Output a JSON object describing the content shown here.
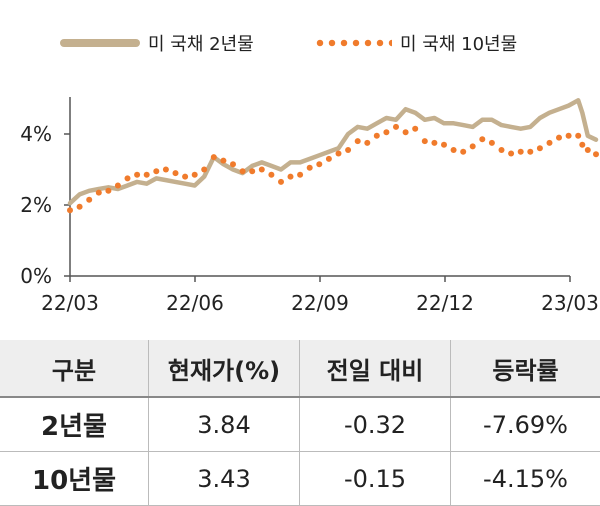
{
  "chart_data": {
    "type": "line",
    "x_ticks": [
      "22/03",
      "22/06",
      "22/09",
      "22/12",
      "23/03"
    ],
    "y_ticks": [
      "0%",
      "2%",
      "4%"
    ],
    "ylim": [
      0,
      5
    ],
    "legend_position": "top",
    "series": [
      {
        "name": "미 국채 2년물",
        "style": "solid",
        "color": "#c4b08f",
        "points": [
          [
            "2022-03-01",
            2.05
          ],
          [
            "2022-03-08",
            2.3
          ],
          [
            "2022-03-15",
            2.4
          ],
          [
            "2022-03-22",
            2.45
          ],
          [
            "2022-03-29",
            2.5
          ],
          [
            "2022-04-05",
            2.45
          ],
          [
            "2022-04-12",
            2.55
          ],
          [
            "2022-04-19",
            2.65
          ],
          [
            "2022-04-26",
            2.6
          ],
          [
            "2022-05-03",
            2.75
          ],
          [
            "2022-05-10",
            2.7
          ],
          [
            "2022-05-17",
            2.65
          ],
          [
            "2022-05-24",
            2.6
          ],
          [
            "2022-05-31",
            2.55
          ],
          [
            "2022-06-07",
            2.8
          ],
          [
            "2022-06-14",
            3.35
          ],
          [
            "2022-06-21",
            3.15
          ],
          [
            "2022-06-28",
            3.0
          ],
          [
            "2022-07-05",
            2.9
          ],
          [
            "2022-07-12",
            3.1
          ],
          [
            "2022-07-19",
            3.2
          ],
          [
            "2022-07-26",
            3.1
          ],
          [
            "2022-08-02",
            3.0
          ],
          [
            "2022-08-09",
            3.2
          ],
          [
            "2022-08-16",
            3.2
          ],
          [
            "2022-08-23",
            3.3
          ],
          [
            "2022-08-30",
            3.4
          ],
          [
            "2022-09-06",
            3.5
          ],
          [
            "2022-09-13",
            3.6
          ],
          [
            "2022-09-20",
            4.0
          ],
          [
            "2022-09-27",
            4.2
          ],
          [
            "2022-10-04",
            4.15
          ],
          [
            "2022-10-11",
            4.3
          ],
          [
            "2022-10-18",
            4.45
          ],
          [
            "2022-10-25",
            4.4
          ],
          [
            "2022-11-01",
            4.7
          ],
          [
            "2022-11-08",
            4.6
          ],
          [
            "2022-11-15",
            4.4
          ],
          [
            "2022-11-22",
            4.45
          ],
          [
            "2022-11-29",
            4.3
          ],
          [
            "2022-12-06",
            4.3
          ],
          [
            "2022-12-13",
            4.25
          ],
          [
            "2022-12-20",
            4.2
          ],
          [
            "2022-12-27",
            4.4
          ],
          [
            "2023-01-03",
            4.4
          ],
          [
            "2023-01-10",
            4.25
          ],
          [
            "2023-01-17",
            4.2
          ],
          [
            "2023-01-24",
            4.15
          ],
          [
            "2023-01-31",
            4.2
          ],
          [
            "2023-02-07",
            4.45
          ],
          [
            "2023-02-14",
            4.6
          ],
          [
            "2023-02-21",
            4.7
          ],
          [
            "2023-02-28",
            4.8
          ],
          [
            "2023-03-07",
            4.95
          ],
          [
            "2023-03-10",
            4.6
          ],
          [
            "2023-03-14",
            3.95
          ],
          [
            "2023-03-20",
            3.84
          ]
        ]
      },
      {
        "name": "미 국채 10년물",
        "style": "dotted",
        "color": "#f07b2c",
        "points": [
          [
            "2022-03-01",
            1.85
          ],
          [
            "2022-03-08",
            1.95
          ],
          [
            "2022-03-15",
            2.15
          ],
          [
            "2022-03-22",
            2.35
          ],
          [
            "2022-03-29",
            2.4
          ],
          [
            "2022-04-05",
            2.55
          ],
          [
            "2022-04-12",
            2.75
          ],
          [
            "2022-04-19",
            2.85
          ],
          [
            "2022-04-26",
            2.85
          ],
          [
            "2022-05-03",
            2.95
          ],
          [
            "2022-05-10",
            3.0
          ],
          [
            "2022-05-17",
            2.9
          ],
          [
            "2022-05-24",
            2.8
          ],
          [
            "2022-05-31",
            2.85
          ],
          [
            "2022-06-07",
            3.0
          ],
          [
            "2022-06-14",
            3.35
          ],
          [
            "2022-06-21",
            3.25
          ],
          [
            "2022-06-28",
            3.15
          ],
          [
            "2022-07-05",
            2.95
          ],
          [
            "2022-07-12",
            2.95
          ],
          [
            "2022-07-19",
            3.0
          ],
          [
            "2022-07-26",
            2.85
          ],
          [
            "2022-08-02",
            2.65
          ],
          [
            "2022-08-09",
            2.8
          ],
          [
            "2022-08-16",
            2.85
          ],
          [
            "2022-08-23",
            3.05
          ],
          [
            "2022-08-30",
            3.15
          ],
          [
            "2022-09-06",
            3.3
          ],
          [
            "2022-09-13",
            3.45
          ],
          [
            "2022-09-20",
            3.55
          ],
          [
            "2022-09-27",
            3.8
          ],
          [
            "2022-10-04",
            3.75
          ],
          [
            "2022-10-11",
            3.95
          ],
          [
            "2022-10-18",
            4.05
          ],
          [
            "2022-10-25",
            4.2
          ],
          [
            "2022-11-01",
            4.05
          ],
          [
            "2022-11-08",
            4.15
          ],
          [
            "2022-11-15",
            3.8
          ],
          [
            "2022-11-22",
            3.75
          ],
          [
            "2022-11-29",
            3.7
          ],
          [
            "2022-12-06",
            3.55
          ],
          [
            "2022-12-13",
            3.5
          ],
          [
            "2022-12-20",
            3.65
          ],
          [
            "2022-12-27",
            3.85
          ],
          [
            "2023-01-03",
            3.75
          ],
          [
            "2023-01-10",
            3.55
          ],
          [
            "2023-01-17",
            3.45
          ],
          [
            "2023-01-24",
            3.5
          ],
          [
            "2023-01-31",
            3.5
          ],
          [
            "2023-02-07",
            3.6
          ],
          [
            "2023-02-14",
            3.75
          ],
          [
            "2023-02-21",
            3.9
          ],
          [
            "2023-02-28",
            3.95
          ],
          [
            "2023-03-07",
            3.95
          ],
          [
            "2023-03-10",
            3.7
          ],
          [
            "2023-03-14",
            3.55
          ],
          [
            "2023-03-20",
            3.43
          ]
        ]
      }
    ]
  },
  "table": {
    "headers": [
      "구분",
      "현재가(%)",
      "전일 대비",
      "등락률"
    ],
    "rows": [
      [
        "2년물",
        "3.84",
        "-0.32",
        "-7.69%"
      ],
      [
        "10년물",
        "3.43",
        "-0.15",
        "-4.15%"
      ]
    ]
  }
}
